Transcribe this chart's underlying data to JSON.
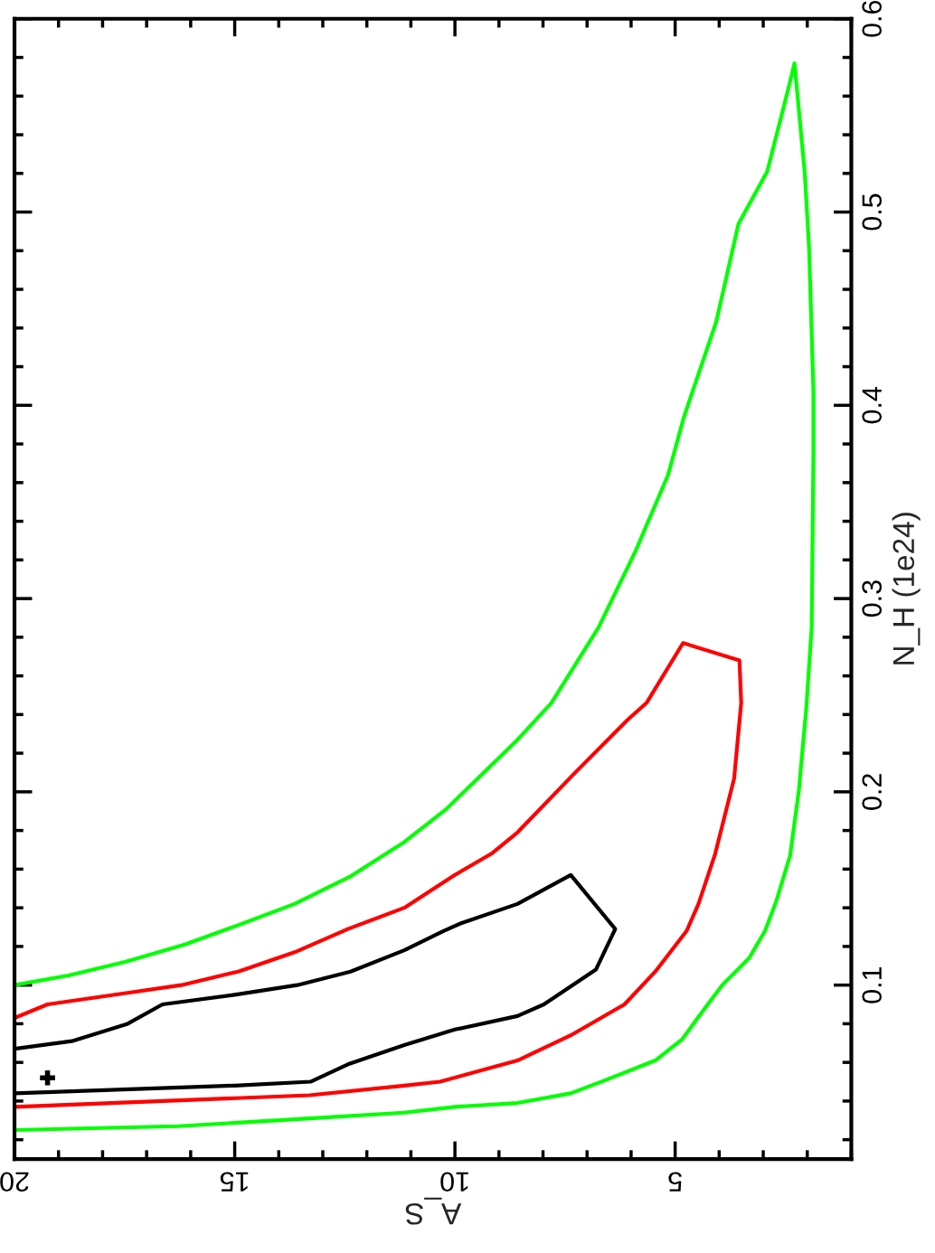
{
  "chart_data": {
    "type": "line",
    "xlabel": "A_S",
    "ylabel": "N_H (1e24)",
    "xlim": [
      20,
      1
    ],
    "xticks": [
      20,
      15,
      10,
      5
    ],
    "ylim": [
      0.01,
      0.6
    ],
    "yticks": [
      0.1,
      0.2,
      0.3,
      0.4,
      0.5,
      0.6
    ],
    "series": [
      {
        "color": "#00ff00",
        "x": [
          20,
          18.77,
          17.49,
          16.13,
          14.92,
          13.64,
          12.39,
          11.15,
          10.2,
          8.62,
          7.81,
          6.74,
          5.89,
          5.16,
          4.8,
          4.07,
          3.56,
          2.91,
          2.45,
          2.29,
          2.06,
          1.96,
          1.86,
          1.86,
          1.9,
          2.02,
          2.19,
          2.39,
          2.71,
          2.96,
          3.32,
          3.93,
          4.23,
          4.84,
          5.45,
          6.56,
          7.37,
          8.58,
          10.0,
          11.15,
          13.3,
          16.28,
          20
        ],
        "values": [
          0.1,
          0.105,
          0.112,
          0.121,
          0.131,
          0.142,
          0.156,
          0.174,
          0.191,
          0.226,
          0.246,
          0.285,
          0.325,
          0.364,
          0.394,
          0.443,
          0.494,
          0.521,
          0.562,
          0.577,
          0.521,
          0.482,
          0.407,
          0.376,
          0.285,
          0.244,
          0.201,
          0.167,
          0.143,
          0.128,
          0.114,
          0.1,
          0.091,
          0.072,
          0.061,
          0.051,
          0.044,
          0.039,
          0.037,
          0.034,
          0.031,
          0.027,
          0.025
        ]
      },
      {
        "color": "#ff0000",
        "x": [
          20,
          19.25,
          17.43,
          16.21,
          14.92,
          13.64,
          12.43,
          11.15,
          10.0,
          9.17,
          8.58,
          7.31,
          6.09,
          5.65,
          4.82,
          3.54,
          3.5,
          3.66,
          4.09,
          4.47,
          4.74,
          5.45,
          6.15,
          7.37,
          8.58,
          10.34,
          11.15,
          13.3,
          20
        ],
        "values": [
          0.083,
          0.09,
          0.096,
          0.1,
          0.107,
          0.117,
          0.129,
          0.14,
          0.157,
          0.168,
          0.179,
          0.209,
          0.237,
          0.246,
          0.277,
          0.268,
          0.246,
          0.207,
          0.168,
          0.142,
          0.128,
          0.107,
          0.09,
          0.074,
          0.061,
          0.05,
          0.048,
          0.043,
          0.037
        ]
      },
      {
        "color": "#000000",
        "x": [
          20,
          18.7,
          17.43,
          16.64,
          15.0,
          13.58,
          12.37,
          11.15,
          10.26,
          9.86,
          8.58,
          7.37,
          6.36,
          6.8,
          7.98,
          8.58,
          10.0,
          11.15,
          12.43,
          13.28,
          15.0,
          20
        ],
        "values": [
          0.067,
          0.071,
          0.08,
          0.09,
          0.095,
          0.1,
          0.107,
          0.118,
          0.128,
          0.132,
          0.142,
          0.157,
          0.129,
          0.108,
          0.09,
          0.084,
          0.077,
          0.069,
          0.059,
          0.05,
          0.048,
          0.044
        ]
      },
      {
        "type": "scatter",
        "color": "#000000",
        "marker": "cross",
        "x": [
          19.25
        ],
        "values": [
          0.052
        ]
      }
    ]
  }
}
